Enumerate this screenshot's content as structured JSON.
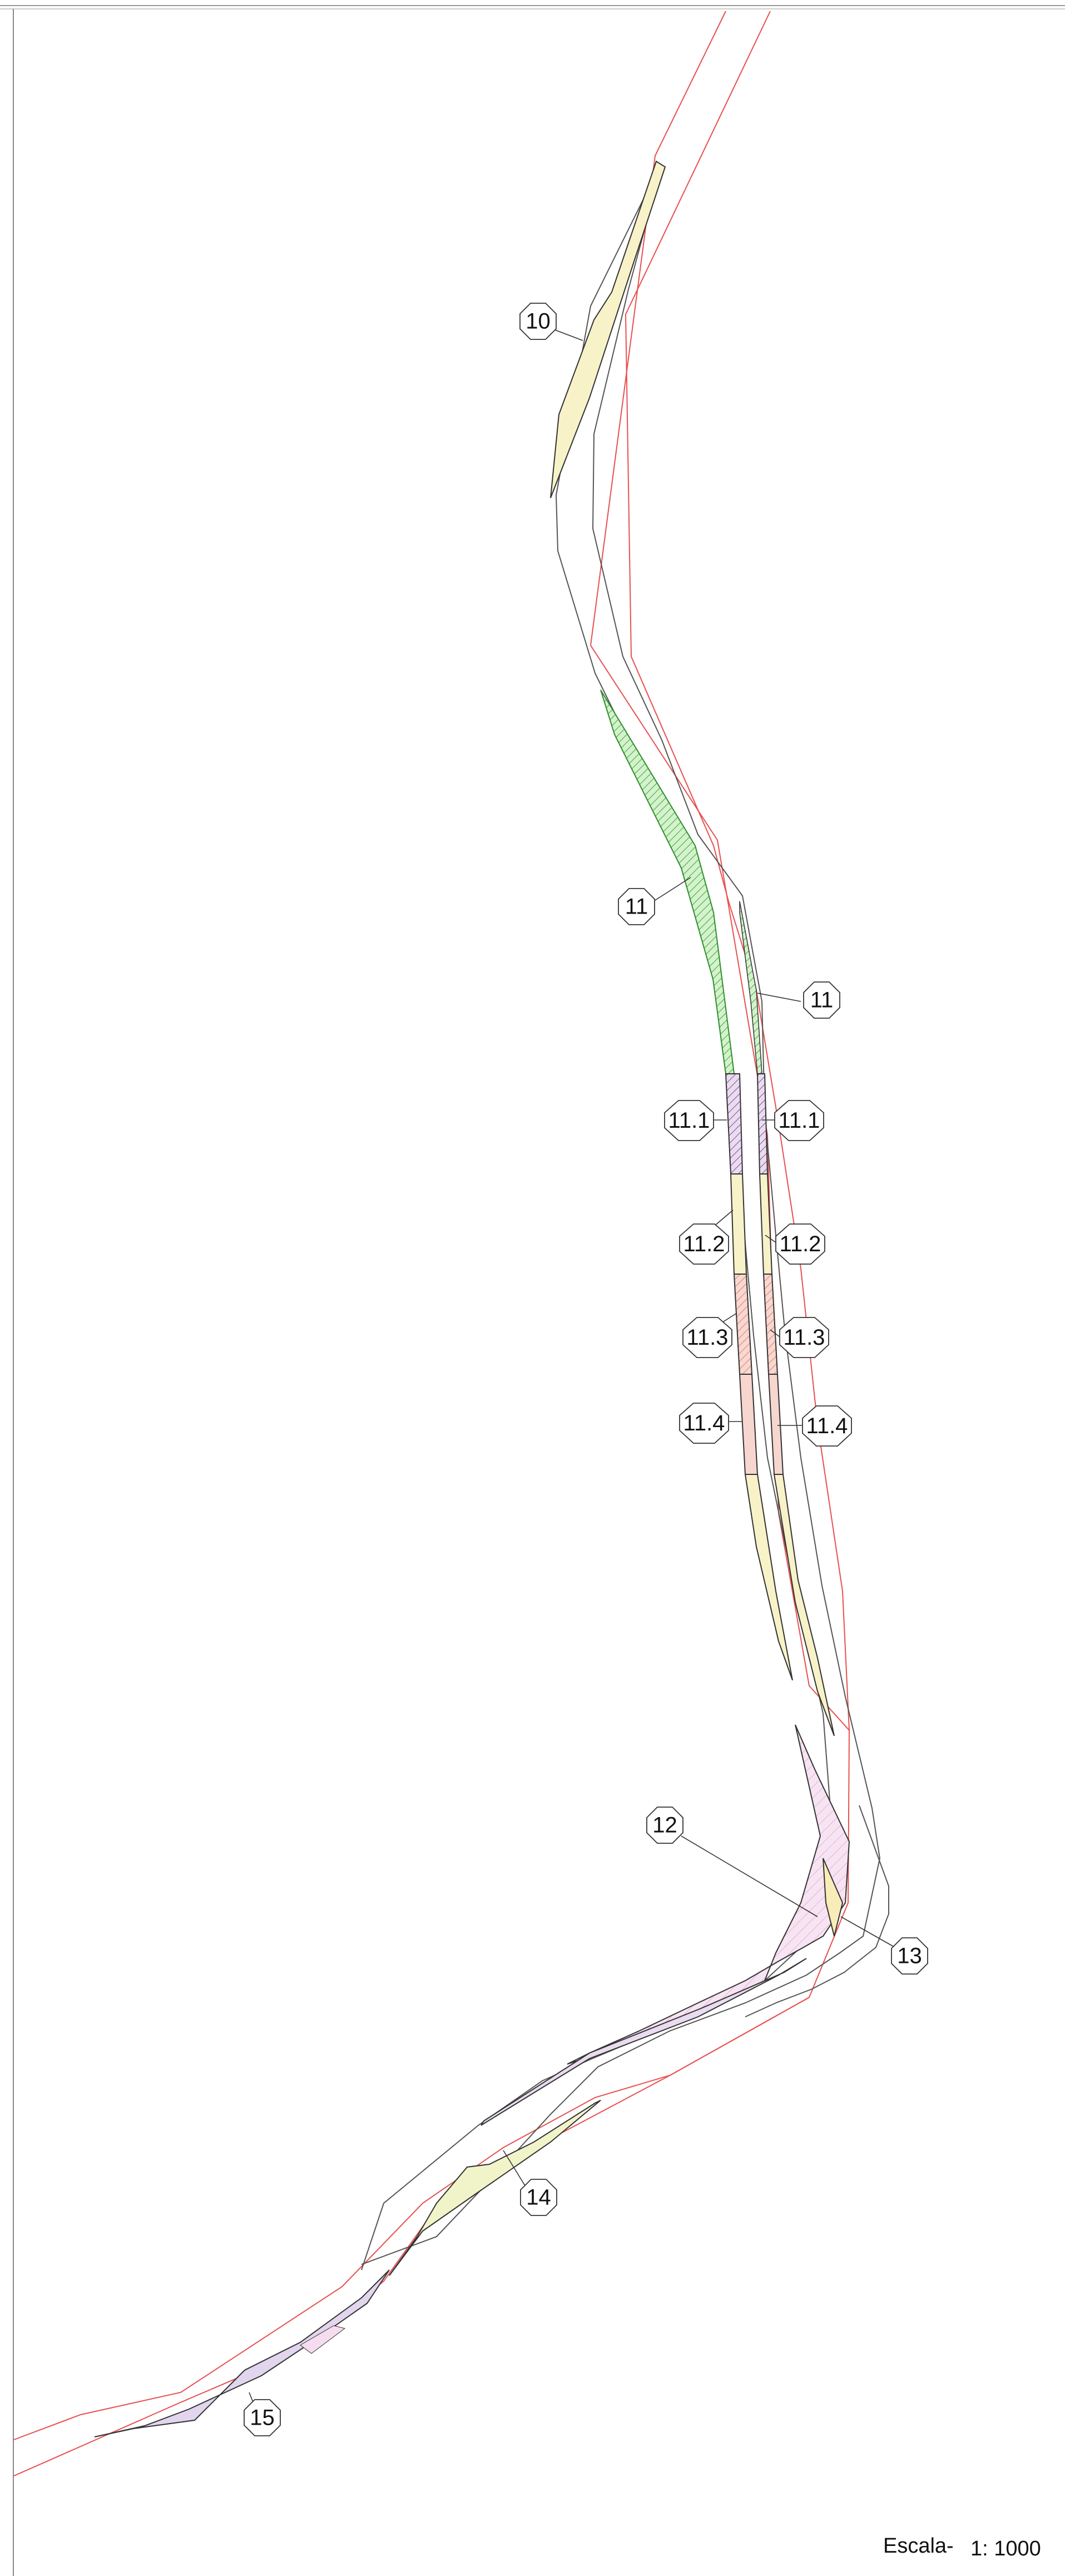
{
  "drawing": {
    "labels": {
      "l10": "10",
      "l11a": "11",
      "l11b": "11",
      "l11_1a": "11.1",
      "l11_1b": "11.1",
      "l11_2a": "11.2",
      "l11_2b": "11.2",
      "l11_3a": "11.3",
      "l11_3b": "11.3",
      "l11_4a": "11.4",
      "l11_4b": "11.4",
      "l12": "12",
      "l13": "13",
      "l14": "14",
      "l15": "15"
    },
    "scale": {
      "prefix": "Escala-",
      "value": "1: 1000"
    },
    "colors": {
      "boundary": "#e85050",
      "road": "#444444",
      "green_fill": "#c8f0c0",
      "yellow_fill": "#f8f2c8",
      "purple_fill": "#f2e0f0",
      "red_fill": "#f8d6d0",
      "frame": "#999999"
    }
  }
}
